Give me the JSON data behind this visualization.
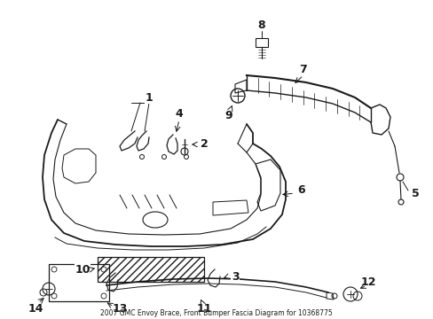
{
  "title": "2007 GMC Envoy Brace, Front Bumper Fascia Diagram for 10368775",
  "bg_color": "#ffffff",
  "line_color": "#1a1a1a",
  "figsize": [
    4.89,
    3.6
  ],
  "dpi": 100
}
